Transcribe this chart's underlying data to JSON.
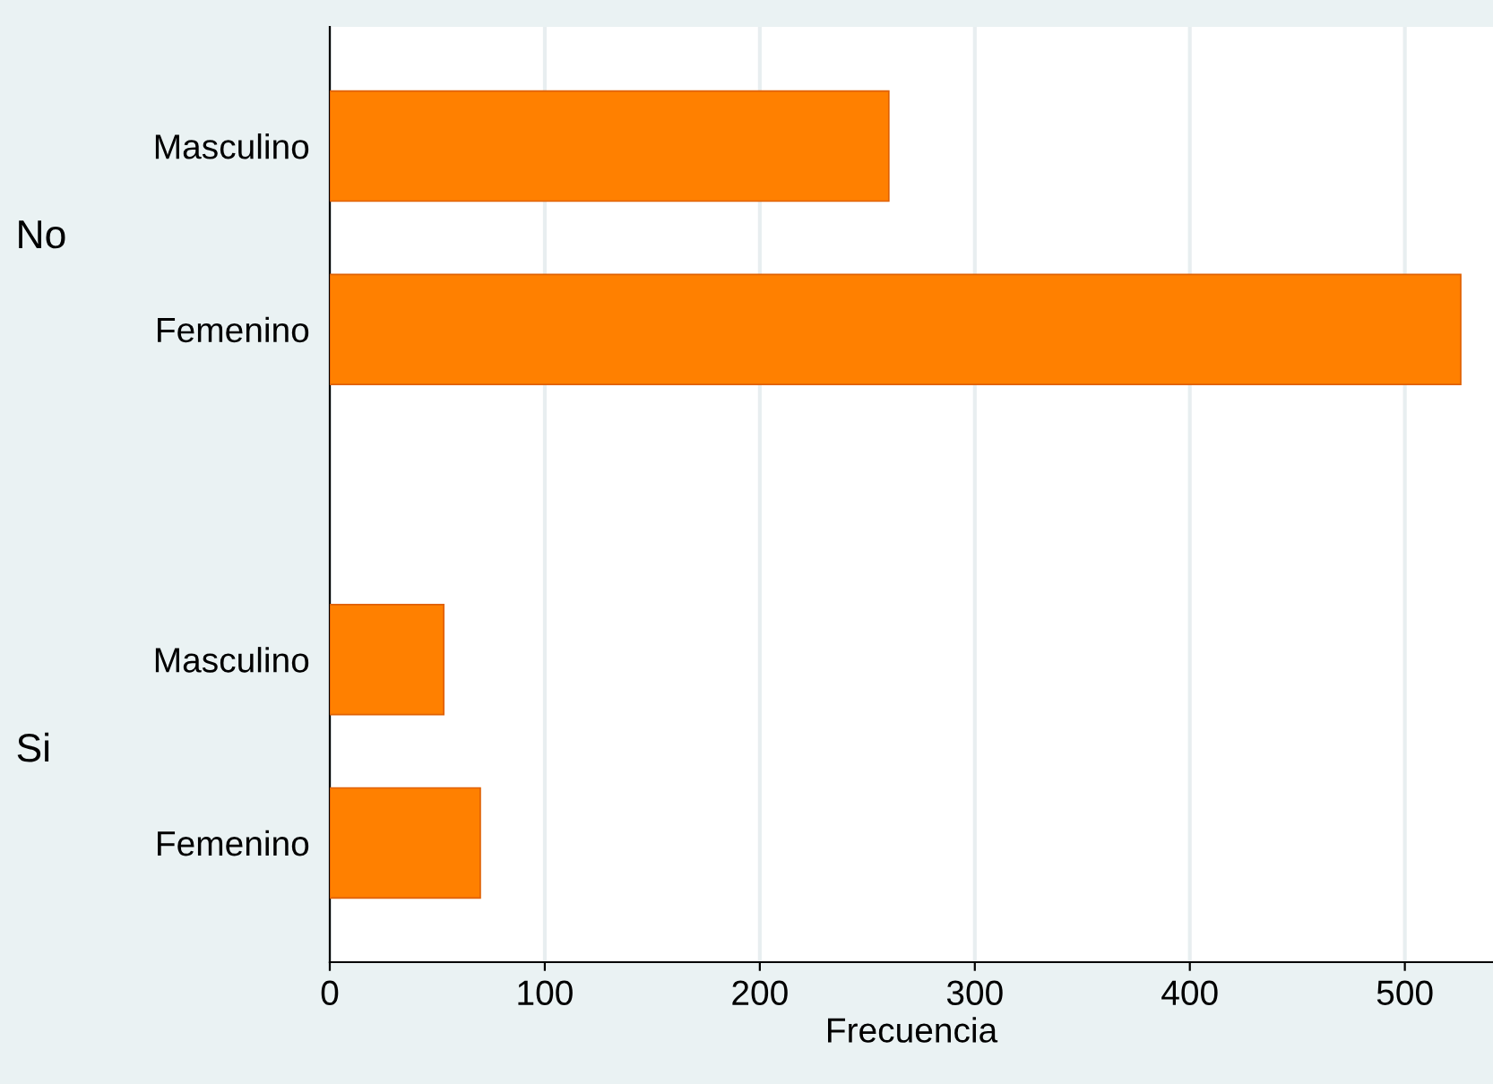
{
  "chart_data": {
    "type": "bar",
    "orientation": "horizontal",
    "categories": [
      "Masculino",
      "Femenino",
      "Masculino",
      "Femenino"
    ],
    "values": [
      260,
      526,
      53,
      70
    ],
    "color": "#ff8000",
    "xlabel": "Frecuencia",
    "annotations": [
      "No",
      "Si"
    ],
    "xlim": [
      0,
      541
    ],
    "xticks": [
      0,
      100,
      200,
      300,
      400,
      500
    ],
    "grid": "x"
  }
}
